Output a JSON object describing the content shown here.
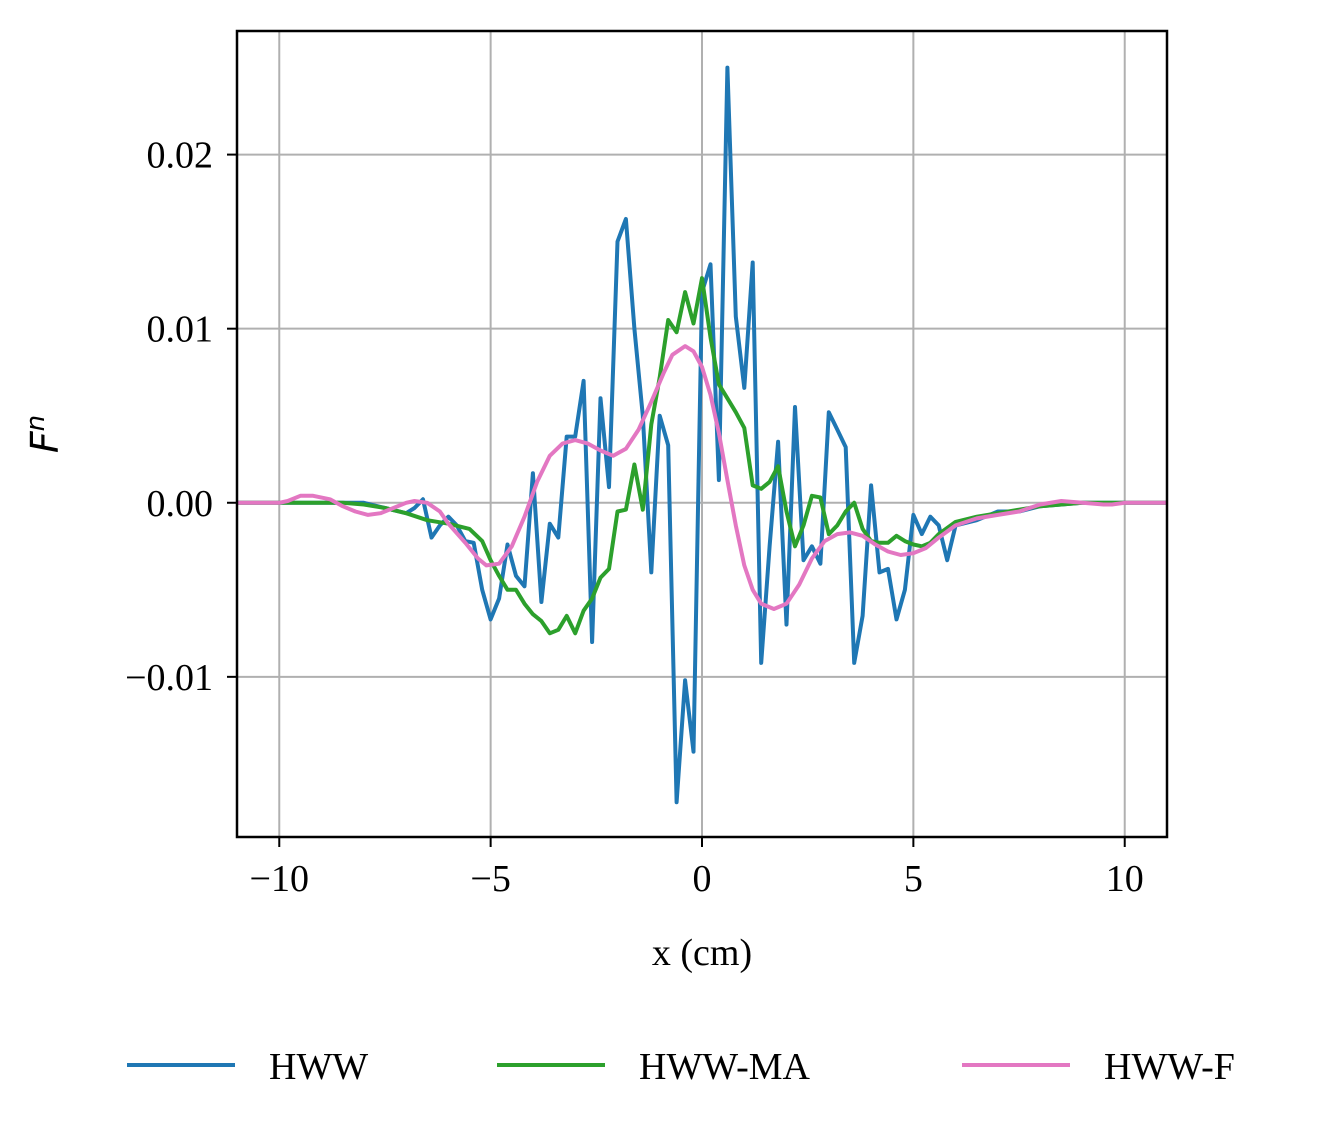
{
  "chart_data": {
    "type": "line",
    "xlabel": "x (cm)",
    "ylabel": {
      "base": "F",
      "sup": "n"
    },
    "xlim": [
      -11,
      11
    ],
    "ylim": [
      -0.0192,
      0.0271
    ],
    "xticks": [
      -10,
      -5,
      0,
      5,
      10
    ],
    "xtick_labels": [
      "−10",
      "−5",
      "0",
      "5",
      "10"
    ],
    "yticks": [
      -0.01,
      0.0,
      0.01,
      0.02
    ],
    "ytick_labels": [
      "−0.01",
      "0.00",
      "0.01",
      "0.02"
    ],
    "grid": true,
    "legend_position": "bottom",
    "series": [
      {
        "name": "HWW",
        "color": "#1f77b4",
        "points": [
          [
            -11,
            0
          ],
          [
            -10,
            0
          ],
          [
            -9.5,
            0
          ],
          [
            -9,
            0
          ],
          [
            -8.5,
            0
          ],
          [
            -8,
            0
          ],
          [
            -7.5,
            -0.0003
          ],
          [
            -7,
            -0.0006
          ],
          [
            -6.8,
            -0.0003
          ],
          [
            -6.6,
            0.0002
          ],
          [
            -6.4,
            -0.002
          ],
          [
            -6.2,
            -0.0013
          ],
          [
            -6,
            -0.0008
          ],
          [
            -5.8,
            -0.0013
          ],
          [
            -5.6,
            -0.0022
          ],
          [
            -5.4,
            -0.0023
          ],
          [
            -5.2,
            -0.005
          ],
          [
            -5,
            -0.0067
          ],
          [
            -4.8,
            -0.0055
          ],
          [
            -4.6,
            -0.0024
          ],
          [
            -4.4,
            -0.0042
          ],
          [
            -4.2,
            -0.0048
          ],
          [
            -4,
            0.0017
          ],
          [
            -3.8,
            -0.0057
          ],
          [
            -3.6,
            -0.0012
          ],
          [
            -3.4,
            -0.002
          ],
          [
            -3.2,
            0.0038
          ],
          [
            -3,
            0.0038
          ],
          [
            -2.8,
            0.007
          ],
          [
            -2.6,
            -0.008
          ],
          [
            -2.4,
            0.006
          ],
          [
            -2.2,
            0.0009
          ],
          [
            -2,
            0.015
          ],
          [
            -1.8,
            0.0163
          ],
          [
            -1.6,
            0.01
          ],
          [
            -1.4,
            0.005
          ],
          [
            -1.2,
            -0.004
          ],
          [
            -1,
            0.005
          ],
          [
            -0.8,
            0.0033
          ],
          [
            -0.6,
            -0.0172
          ],
          [
            -0.4,
            -0.0102
          ],
          [
            -0.2,
            -0.0143
          ],
          [
            0,
            0.0121
          ],
          [
            0.2,
            0.0137
          ],
          [
            0.4,
            0.0013
          ],
          [
            0.6,
            0.025
          ],
          [
            0.8,
            0.0107
          ],
          [
            1,
            0.0066
          ],
          [
            1.2,
            0.0138
          ],
          [
            1.4,
            -0.0092
          ],
          [
            1.6,
            -0.0025
          ],
          [
            1.8,
            0.0035
          ],
          [
            2,
            -0.007
          ],
          [
            2.2,
            0.0055
          ],
          [
            2.4,
            -0.0033
          ],
          [
            2.6,
            -0.0025
          ],
          [
            2.8,
            -0.0035
          ],
          [
            3,
            0.0052
          ],
          [
            3.2,
            0.0042
          ],
          [
            3.4,
            0.0032
          ],
          [
            3.6,
            -0.0092
          ],
          [
            3.8,
            -0.0065
          ],
          [
            4,
            0.001
          ],
          [
            4.2,
            -0.004
          ],
          [
            4.4,
            -0.0038
          ],
          [
            4.6,
            -0.0067
          ],
          [
            4.8,
            -0.005
          ],
          [
            5,
            -0.0007
          ],
          [
            5.2,
            -0.0018
          ],
          [
            5.4,
            -0.0008
          ],
          [
            5.6,
            -0.0013
          ],
          [
            5.8,
            -0.0033
          ],
          [
            6,
            -0.0013
          ],
          [
            6.5,
            -0.001
          ],
          [
            7,
            -0.0005
          ],
          [
            7.5,
            -0.0005
          ],
          [
            8,
            -0.0002
          ],
          [
            9,
            0
          ],
          [
            10,
            0
          ],
          [
            11,
            0
          ]
        ]
      },
      {
        "name": "HWW-MA",
        "color": "#2ca02c",
        "points": [
          [
            -11,
            0
          ],
          [
            -10,
            0
          ],
          [
            -9.5,
            0
          ],
          [
            -9,
            0
          ],
          [
            -8.5,
            0
          ],
          [
            -8,
            -0.0001
          ],
          [
            -7.5,
            -0.0003
          ],
          [
            -7,
            -0.0006
          ],
          [
            -6.5,
            -0.001
          ],
          [
            -6,
            -0.0012
          ],
          [
            -5.5,
            -0.0015
          ],
          [
            -5.2,
            -0.0022
          ],
          [
            -5,
            -0.0033
          ],
          [
            -4.8,
            -0.0042
          ],
          [
            -4.6,
            -0.005
          ],
          [
            -4.4,
            -0.005
          ],
          [
            -4.2,
            -0.0058
          ],
          [
            -4,
            -0.0064
          ],
          [
            -3.8,
            -0.0068
          ],
          [
            -3.6,
            -0.0075
          ],
          [
            -3.4,
            -0.0073
          ],
          [
            -3.2,
            -0.0065
          ],
          [
            -3,
            -0.0075
          ],
          [
            -2.8,
            -0.0062
          ],
          [
            -2.6,
            -0.0055
          ],
          [
            -2.4,
            -0.0043
          ],
          [
            -2.2,
            -0.0038
          ],
          [
            -2,
            -0.0005
          ],
          [
            -1.8,
            -0.0004
          ],
          [
            -1.6,
            0.0022
          ],
          [
            -1.4,
            -0.0004
          ],
          [
            -1.2,
            0.0045
          ],
          [
            -1,
            0.0072
          ],
          [
            -0.8,
            0.0105
          ],
          [
            -0.6,
            0.0098
          ],
          [
            -0.4,
            0.0121
          ],
          [
            -0.2,
            0.0103
          ],
          [
            0,
            0.0129
          ],
          [
            0.2,
            0.0095
          ],
          [
            0.4,
            0.0068
          ],
          [
            0.6,
            0.006
          ],
          [
            0.8,
            0.0052
          ],
          [
            1,
            0.0043
          ],
          [
            1.2,
            0.001
          ],
          [
            1.4,
            0.0008
          ],
          [
            1.6,
            0.0012
          ],
          [
            1.8,
            0.0021
          ],
          [
            2,
            -0.0005
          ],
          [
            2.2,
            -0.0025
          ],
          [
            2.4,
            -0.0013
          ],
          [
            2.6,
            0.0004
          ],
          [
            2.8,
            0.0003
          ],
          [
            3,
            -0.0018
          ],
          [
            3.2,
            -0.0013
          ],
          [
            3.4,
            -0.0005
          ],
          [
            3.6,
            0
          ],
          [
            3.8,
            -0.0015
          ],
          [
            4,
            -0.0022
          ],
          [
            4.2,
            -0.0023
          ],
          [
            4.4,
            -0.0023
          ],
          [
            4.6,
            -0.0019
          ],
          [
            4.8,
            -0.0022
          ],
          [
            5,
            -0.0024
          ],
          [
            5.2,
            -0.0025
          ],
          [
            5.4,
            -0.0023
          ],
          [
            5.6,
            -0.0018
          ],
          [
            6,
            -0.0011
          ],
          [
            6.5,
            -0.0008
          ],
          [
            7,
            -0.0006
          ],
          [
            7.5,
            -0.0004
          ],
          [
            8,
            -0.0002
          ],
          [
            9,
            0
          ],
          [
            10,
            0
          ],
          [
            11,
            0
          ]
        ]
      },
      {
        "name": "HWW-F",
        "color": "#e377c2",
        "points": [
          [
            -11,
            0
          ],
          [
            -10,
            0
          ],
          [
            -9.8,
            0.0001
          ],
          [
            -9.5,
            0.0004
          ],
          [
            -9.2,
            0.0004
          ],
          [
            -8.8,
            0.0002
          ],
          [
            -8.5,
            -0.0002
          ],
          [
            -8.2,
            -0.0005
          ],
          [
            -7.9,
            -0.0007
          ],
          [
            -7.6,
            -0.0006
          ],
          [
            -7.3,
            -0.0003
          ],
          [
            -7,
            0
          ],
          [
            -6.8,
            0.0001
          ],
          [
            -6.5,
            0
          ],
          [
            -6.2,
            -0.0005
          ],
          [
            -6,
            -0.0012
          ],
          [
            -5.6,
            -0.0023
          ],
          [
            -5.3,
            -0.0032
          ],
          [
            -5.1,
            -0.0036
          ],
          [
            -4.8,
            -0.0035
          ],
          [
            -4.5,
            -0.0025
          ],
          [
            -4.2,
            -0.0008
          ],
          [
            -3.9,
            0.0012
          ],
          [
            -3.6,
            0.0027
          ],
          [
            -3.3,
            0.0034
          ],
          [
            -3,
            0.0036
          ],
          [
            -2.7,
            0.0034
          ],
          [
            -2.4,
            0.003
          ],
          [
            -2.1,
            0.0027
          ],
          [
            -1.8,
            0.0031
          ],
          [
            -1.5,
            0.0042
          ],
          [
            -1.2,
            0.0058
          ],
          [
            -0.9,
            0.0075
          ],
          [
            -0.7,
            0.0085
          ],
          [
            -0.4,
            0.009
          ],
          [
            -0.2,
            0.0087
          ],
          [
            0,
            0.0078
          ],
          [
            0.2,
            0.0062
          ],
          [
            0.4,
            0.004
          ],
          [
            0.6,
            0.0013
          ],
          [
            0.8,
            -0.0013
          ],
          [
            1,
            -0.0036
          ],
          [
            1.2,
            -0.005
          ],
          [
            1.4,
            -0.0058
          ],
          [
            1.7,
            -0.0061
          ],
          [
            2,
            -0.0058
          ],
          [
            2.3,
            -0.0047
          ],
          [
            2.6,
            -0.0032
          ],
          [
            2.9,
            -0.0022
          ],
          [
            3.2,
            -0.0018
          ],
          [
            3.5,
            -0.0017
          ],
          [
            3.8,
            -0.0019
          ],
          [
            4.1,
            -0.0024
          ],
          [
            4.4,
            -0.0028
          ],
          [
            4.7,
            -0.003
          ],
          [
            5,
            -0.0029
          ],
          [
            5.3,
            -0.0026
          ],
          [
            5.6,
            -0.002
          ],
          [
            6,
            -0.0013
          ],
          [
            6.5,
            -0.0009
          ],
          [
            7,
            -0.0007
          ],
          [
            7.5,
            -0.0005
          ],
          [
            8,
            -0.0001
          ],
          [
            8.5,
            0.0001
          ],
          [
            9,
            0
          ],
          [
            9.5,
            -0.0001
          ],
          [
            9.7,
            -0.0001
          ],
          [
            10,
            0
          ],
          [
            11,
            0
          ]
        ]
      }
    ]
  }
}
